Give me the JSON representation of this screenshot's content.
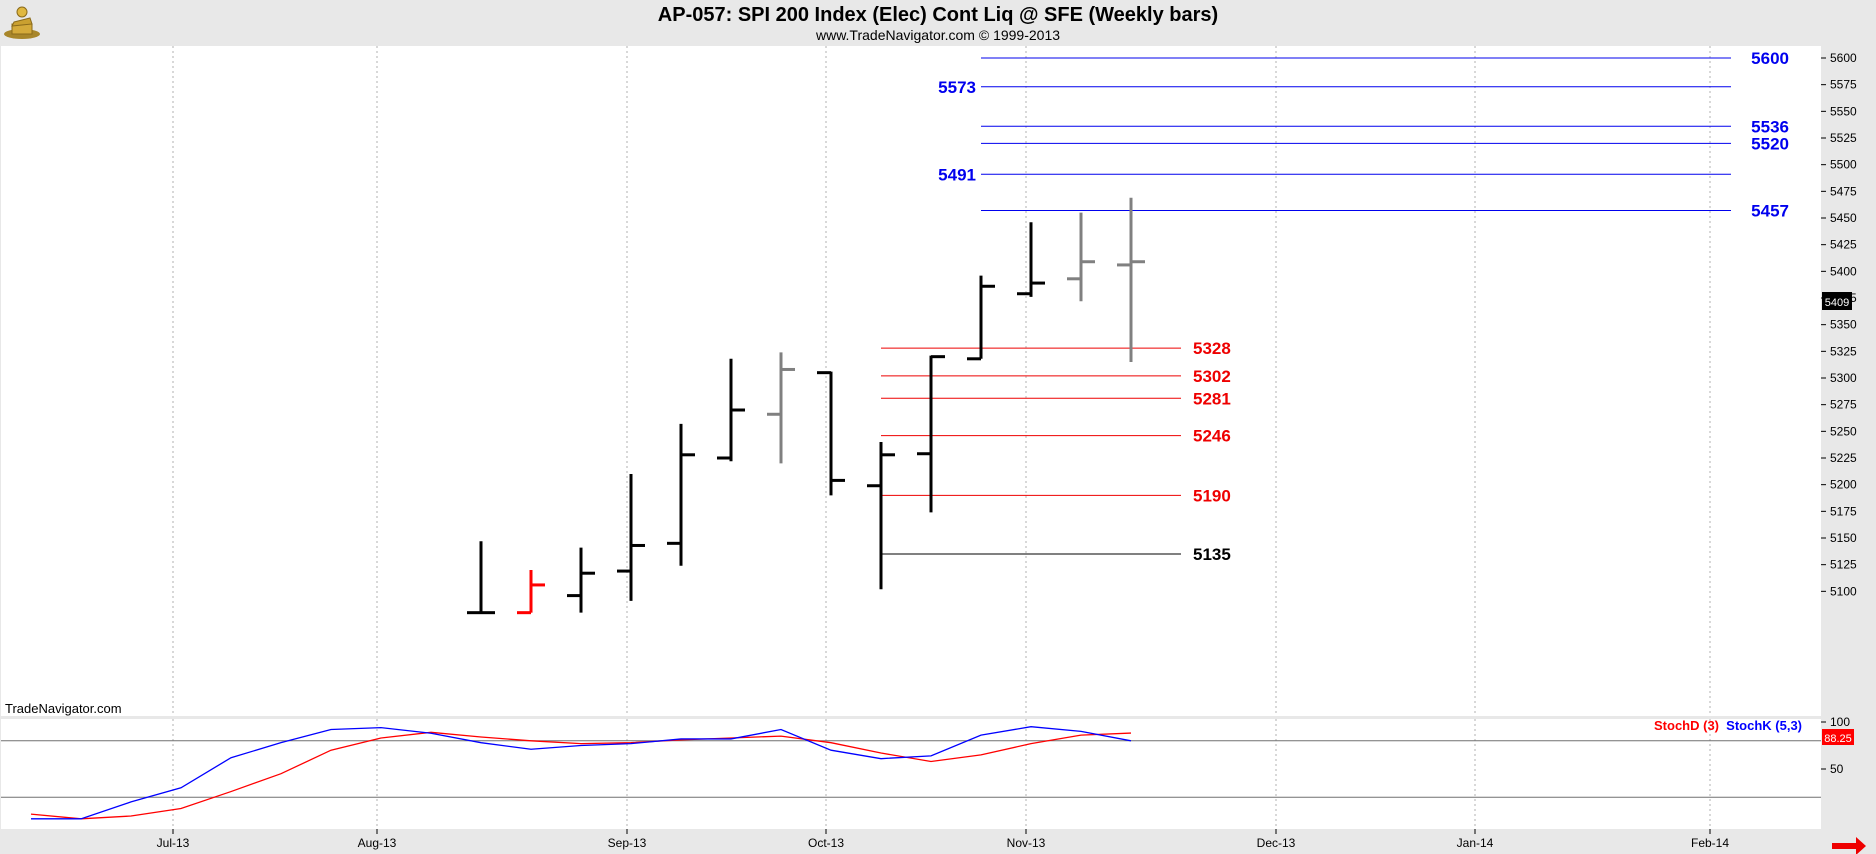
{
  "header": {
    "title": "AP-057:  SPI 200 Index (Elec) Cont Liq @ SFE  (Weekly bars)",
    "subtitle": "www.TradeNavigator.com © 1999-2013",
    "logo_icon": "gold-figure-logo-icon"
  },
  "watermark": "TradeNavigator.com",
  "colors": {
    "background": "#ffffff",
    "frame": "#e8e8e8",
    "resistance": "#0000ee",
    "support": "#ee0000",
    "bar_black": "#000000",
    "bar_gray": "#808080",
    "bar_red": "#ff0000",
    "stochD": "#ff0000",
    "stochK": "#0000ff",
    "nav_arrow": "#ee0000"
  },
  "nav_arrow_icon": "right-arrow-icon",
  "chart_data": [
    {
      "type": "ohlc",
      "title": "AP-057:  SPI 200 Index (Elec) Cont Liq @ SFE  (Weekly bars)",
      "x_ticks": [
        "Jul-13",
        "Aug-13",
        "Sep-13",
        "Oct-13",
        "Nov-13",
        "Dec-13",
        "Jan-14",
        "Feb-14"
      ],
      "y_ticks": [
        5100,
        5125,
        5150,
        5175,
        5200,
        5225,
        5250,
        5275,
        5300,
        5325,
        5350,
        5375,
        5400,
        5425,
        5450,
        5475,
        5500,
        5525,
        5550,
        5575,
        5600
      ],
      "ylim": [
        5085,
        5617
      ],
      "last_price_tag": "5409",
      "grid": "vertical dotted",
      "bars": [
        {
          "week": 9,
          "open": 5080,
          "high": 5147,
          "low": 5080,
          "close": 5080,
          "color": "#000000"
        },
        {
          "week": 10,
          "open": 5080,
          "high": 5120,
          "low": 5080,
          "close": 5106,
          "color": "#ff0000"
        },
        {
          "week": 11,
          "open": 5096,
          "high": 5141,
          "low": 5080,
          "close": 5117,
          "color": "#000000"
        },
        {
          "week": 12,
          "open": 5119,
          "high": 5210,
          "low": 5091,
          "close": 5143,
          "color": "#000000"
        },
        {
          "week": 13,
          "open": 5145,
          "high": 5257,
          "low": 5124,
          "close": 5228,
          "color": "#000000"
        },
        {
          "week": 14,
          "open": 5225,
          "high": 5318,
          "low": 5222,
          "close": 5270,
          "color": "#000000"
        },
        {
          "week": 15,
          "open": 5266,
          "high": 5324,
          "low": 5220,
          "close": 5308,
          "color": "#808080"
        },
        {
          "week": 16,
          "open": 5305,
          "high": 5306,
          "low": 5190,
          "close": 5204,
          "color": "#000000"
        },
        {
          "week": 17,
          "open": 5199,
          "high": 5240,
          "low": 5102,
          "close": 5228,
          "color": "#000000"
        },
        {
          "week": 18,
          "open": 5229,
          "high": 5321,
          "low": 5174,
          "close": 5320,
          "color": "#000000"
        },
        {
          "week": 19,
          "open": 5318,
          "high": 5396,
          "low": 5318,
          "close": 5386,
          "color": "#000000"
        },
        {
          "week": 20,
          "open": 5379,
          "high": 5446,
          "low": 5376,
          "close": 5389,
          "color": "#000000"
        },
        {
          "week": 21,
          "open": 5393,
          "high": 5455,
          "low": 5372,
          "close": 5409,
          "color": "#808080"
        },
        {
          "week": 22,
          "open": 5406,
          "high": 5469,
          "low": 5315,
          "close": 5409,
          "color": "#808080"
        }
      ],
      "resistance_levels": [
        {
          "value": 5600,
          "label": "5600",
          "label_side": "right"
        },
        {
          "value": 5573,
          "label": "5573",
          "label_side": "left"
        },
        {
          "value": 5536,
          "label": "5536",
          "label_side": "right"
        },
        {
          "value": 5520,
          "label": "5520",
          "label_side": "right"
        },
        {
          "value": 5491,
          "label": "5491",
          "label_side": "left"
        },
        {
          "value": 5457,
          "label": "5457",
          "label_side": "right"
        }
      ],
      "support_levels": [
        {
          "value": 5328,
          "label": "5328",
          "color": "#ee0000"
        },
        {
          "value": 5302,
          "label": "5302",
          "color": "#ee0000"
        },
        {
          "value": 5281,
          "label": "5281",
          "color": "#ee0000"
        },
        {
          "value": 5246,
          "label": "5246",
          "color": "#ee0000"
        },
        {
          "value": 5190,
          "label": "5190",
          "color": "#ee0000"
        },
        {
          "value": 5135,
          "label": "5135",
          "color": "#000000"
        }
      ]
    },
    {
      "type": "line",
      "title": "",
      "legend": [
        "StochD (3)",
        "StochK (5,3)"
      ],
      "y_ticks": [
        50,
        100
      ],
      "ylim": [
        0,
        100
      ],
      "reference_lines": [
        80,
        20
      ],
      "tags": [
        "88.25"
      ],
      "series": [
        {
          "name": "StochD (3)",
          "color": "#ff0000",
          "week": [
            0,
            1,
            2,
            3,
            4,
            5,
            6,
            7,
            8,
            9,
            10,
            11,
            12,
            13,
            14,
            15,
            16,
            17,
            18,
            19,
            20,
            21,
            22
          ],
          "values": [
            2,
            -3,
            0,
            8,
            26,
            45,
            70,
            83,
            89,
            84,
            80,
            77,
            78,
            81,
            83,
            85,
            78,
            67,
            58,
            65,
            77,
            86,
            88.25
          ]
        },
        {
          "name": "StochK (5,3)",
          "color": "#0000ff",
          "week": [
            0,
            1,
            2,
            3,
            4,
            5,
            6,
            7,
            8,
            9,
            10,
            11,
            12,
            13,
            14,
            15,
            16,
            17,
            18,
            19,
            20,
            21,
            22
          ],
          "values": [
            -3,
            -3,
            15,
            30,
            62,
            78,
            92,
            94,
            88,
            78,
            71,
            75,
            77,
            82,
            82,
            92,
            70,
            61,
            64,
            86,
            95,
            90,
            80
          ]
        }
      ]
    }
  ]
}
